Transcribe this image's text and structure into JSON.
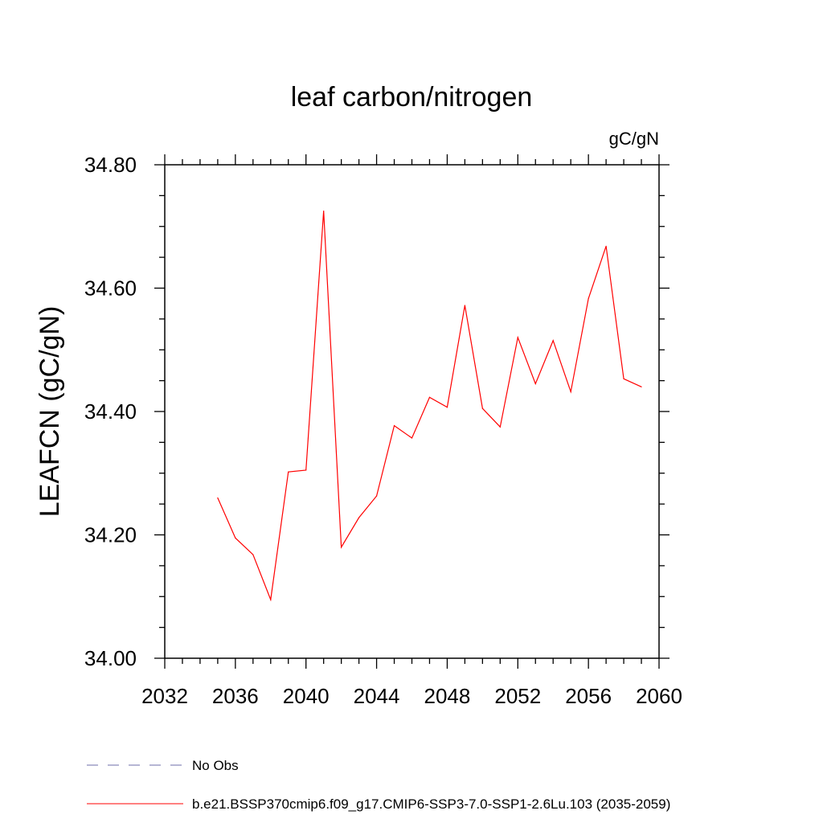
{
  "chart_data": {
    "type": "line",
    "title": "leaf carbon/nitrogen",
    "units_label": "gC/gN",
    "xlabel": "",
    "ylabel": "LEAFCN  (gC/gN)",
    "xlim": [
      2032,
      2060
    ],
    "ylim": [
      34.0,
      34.8
    ],
    "x_ticks": [
      2032,
      2036,
      2040,
      2044,
      2048,
      2052,
      2056,
      2060
    ],
    "x_tick_labels": [
      "2032",
      "2036",
      "2040",
      "2044",
      "2048",
      "2052",
      "2056",
      "2060"
    ],
    "x_minor_step": 1,
    "y_ticks": [
      34.0,
      34.2,
      34.4,
      34.6,
      34.8
    ],
    "y_tick_labels": [
      "34.00",
      "34.20",
      "34.40",
      "34.60",
      "34.80"
    ],
    "y_minor_step": 0.05,
    "grid": false,
    "legend_position": "bottom-left",
    "series": [
      {
        "name": "No Obs",
        "color": "#6e6ea8",
        "dashed": true,
        "x": [],
        "values": []
      },
      {
        "name": "b.e21.BSSP370cmip6.f09_g17.CMIP6-SSP3-7.0-SSP1-2.6Lu.103 (2035-2059)",
        "color": "#ff0000",
        "dashed": false,
        "x": [
          2035,
          2036,
          2037,
          2038,
          2039,
          2040,
          2041,
          2042,
          2043,
          2044,
          2045,
          2046,
          2047,
          2048,
          2049,
          2050,
          2051,
          2052,
          2053,
          2054,
          2055,
          2056,
          2057,
          2058,
          2059
        ],
        "values": [
          34.26,
          34.195,
          34.168,
          34.095,
          34.302,
          34.305,
          34.725,
          34.18,
          34.228,
          34.263,
          34.377,
          34.357,
          34.423,
          34.407,
          34.572,
          34.405,
          34.375,
          34.52,
          34.445,
          34.515,
          34.432,
          34.583,
          34.668,
          34.453,
          34.44
        ]
      }
    ]
  }
}
